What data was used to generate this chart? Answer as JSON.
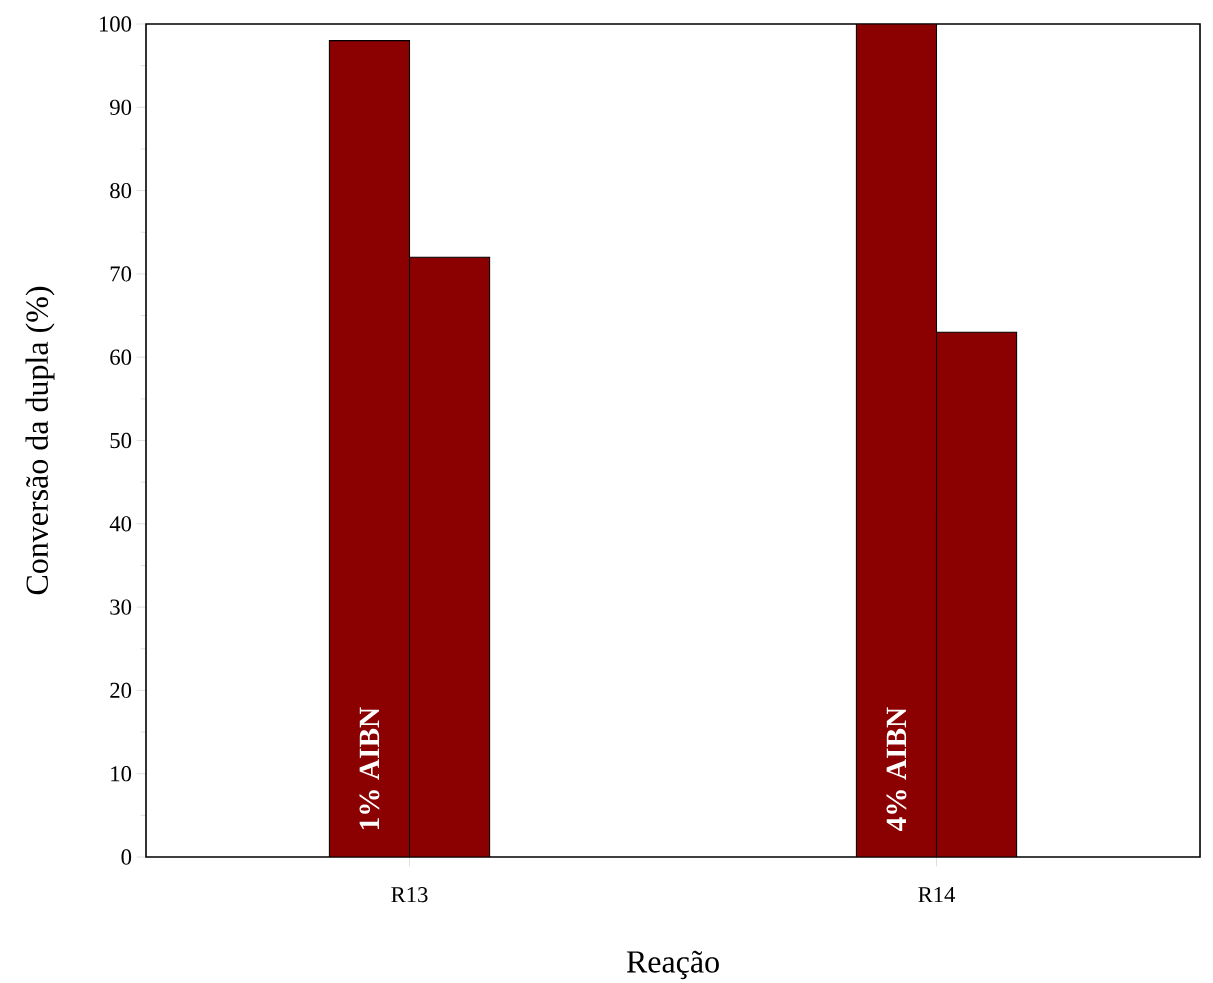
{
  "chart_data": {
    "type": "bar",
    "xlabel": "Reação",
    "ylabel": "Conversão da dupla (%)",
    "categories": [
      "R13",
      "R14"
    ],
    "series": [
      {
        "color": "#8b0000",
        "values": [
          98,
          100
        ]
      },
      {
        "color": "#8b0000",
        "values": [
          72,
          63
        ]
      }
    ],
    "ylim": [
      0,
      100
    ],
    "yticks": [
      0,
      10,
      20,
      30,
      40,
      50,
      60,
      70,
      80,
      90,
      100
    ],
    "annotations": [
      "1% AIBN",
      "4% AIBN"
    ]
  }
}
